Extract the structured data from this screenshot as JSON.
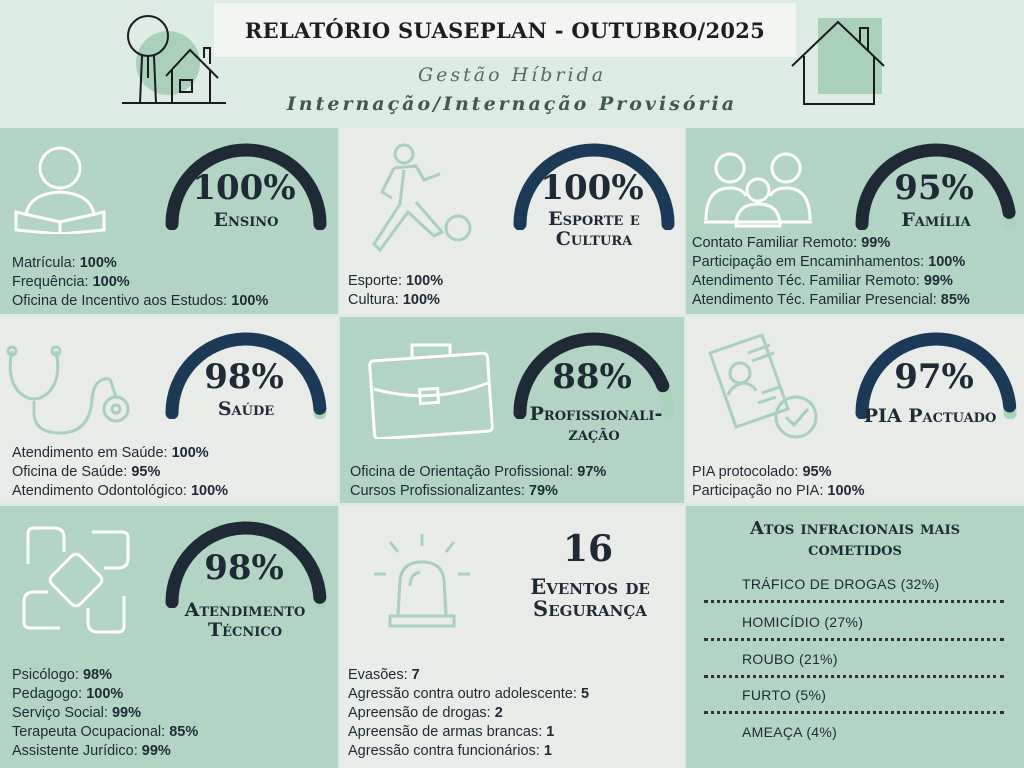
{
  "header": {
    "title": "RELATÓRIO SUASEPLAN - OUTUBRO/2025",
    "subtitle1": "Gestão Híbrida",
    "subtitle2": "Internação/Internação Provisória"
  },
  "panels": {
    "ensino": {
      "percent": "100%",
      "percent_value": 100,
      "label": "Ensino",
      "metrics": [
        {
          "name": "Matrícula: ",
          "value": "100%"
        },
        {
          "name": "Frequência: ",
          "value": "100%"
        },
        {
          "name": "Oficina de Incentivo aos Estudos: ",
          "value": "100%"
        }
      ]
    },
    "esporte": {
      "percent": "100%",
      "percent_value": 100,
      "label1": "Esporte e",
      "label2": "Cultura",
      "metrics": [
        {
          "name": "Esporte: ",
          "value": "100%"
        },
        {
          "name": "Cultura: ",
          "value": "100%"
        }
      ]
    },
    "familia": {
      "percent": "95%",
      "percent_value": 95,
      "label": "Família",
      "metrics": [
        {
          "name": "Contato Familiar Remoto: ",
          "value": "99%"
        },
        {
          "name": "Participação em Encaminhamentos: ",
          "value": "100%"
        },
        {
          "name": "Atendimento Téc. Familiar Remoto: ",
          "value": "99%"
        },
        {
          "name": "Atendimento Téc. Familiar Presencial: ",
          "value": "85%"
        }
      ]
    },
    "saude": {
      "percent": "98%",
      "percent_value": 98,
      "label": "Saúde",
      "metrics": [
        {
          "name": "Atendimento em Saúde: ",
          "value": "100%"
        },
        {
          "name": "Oficina de Saúde: ",
          "value": "95%"
        },
        {
          "name": "Atendimento Odontológico: ",
          "value": "100%"
        }
      ]
    },
    "profissionalizacao": {
      "percent": "88%",
      "percent_value": 88,
      "label1": "Profissionali-",
      "label2": "zação",
      "metrics": [
        {
          "name": "Oficina de Orientação Profissional: ",
          "value": "97%"
        },
        {
          "name": "Cursos Profissionalizantes: ",
          "value": "79%"
        }
      ]
    },
    "pia": {
      "percent": "97%",
      "percent_value": 97,
      "label": "PIA Pactuado",
      "metrics": [
        {
          "name": "PIA protocolado: ",
          "value": "95%"
        },
        {
          "name": "Participação no PIA: ",
          "value": "100%"
        }
      ]
    },
    "atendimento": {
      "percent": "98%",
      "percent_value": 98,
      "label1": "Atendimento",
      "label2": "Técnico",
      "metrics": [
        {
          "name": "Psicólogo: ",
          "value": "98%"
        },
        {
          "name": "Pedagogo: ",
          "value": "100%"
        },
        {
          "name": "Serviço Social: ",
          "value": "99%"
        },
        {
          "name": "Terapeuta Ocupacional: ",
          "value": "85%"
        },
        {
          "name": "Assistente Jurídico: ",
          "value": "99%"
        }
      ]
    },
    "seguranca": {
      "count": "16",
      "label1": "Eventos de",
      "label2": "Segurança",
      "metrics": [
        {
          "name": "Evasões: ",
          "value": "7"
        },
        {
          "name": "Agressão contra outro adolescente: ",
          "value": "5"
        },
        {
          "name": "Apreensão de drogas: ",
          "value": "2"
        },
        {
          "name": "Apreensão de armas brancas: ",
          "value": "1"
        },
        {
          "name": "Agressão contra funcionários: ",
          "value": "1"
        }
      ]
    },
    "atos": {
      "title1": "Atos infracionais mais",
      "title2": "cometidos",
      "items": [
        "TRÁFICO DE DROGAS (32%)",
        "HOMICÍDIO (27%)",
        "ROUBO (21%)",
        "FURTO (5%)",
        "AMEAÇA (4%)"
      ]
    }
  },
  "colors": {
    "dark": "#1e2a36",
    "navy": "#1b3a57",
    "track": "#a9d3bd",
    "green_panel": "#b2d4c4",
    "grey_panel": "#e8ebe8"
  }
}
